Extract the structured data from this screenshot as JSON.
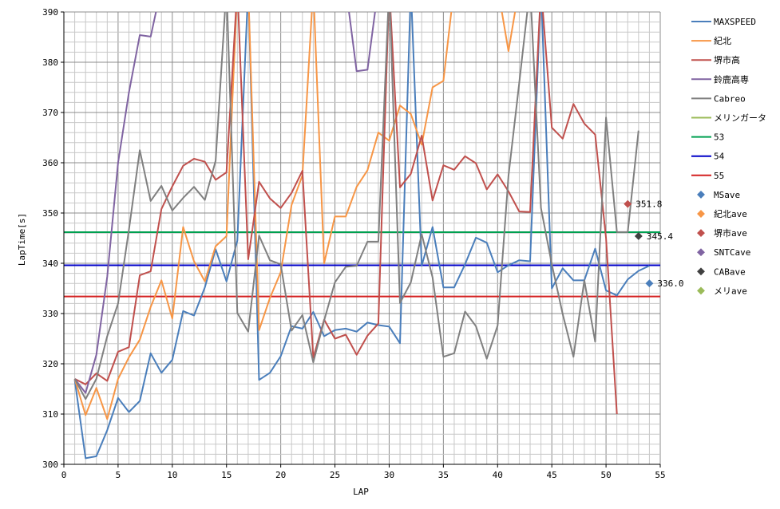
{
  "chart_data": {
    "type": "line",
    "xlabel": "LAP",
    "ylabel": "LapTime[s]",
    "xlim": [
      0,
      55
    ],
    "ylim": [
      300,
      390
    ],
    "xticks": [
      0,
      5,
      10,
      15,
      20,
      25,
      30,
      35,
      40,
      45,
      50,
      55
    ],
    "yticks": [
      300,
      310,
      320,
      330,
      340,
      350,
      360,
      370,
      380,
      390
    ],
    "grid": true,
    "legend_position": "right",
    "series": [
      {
        "name": "MAXSPEED",
        "color": "#4a7ebb",
        "x": [
          1,
          2,
          3,
          4,
          5,
          6,
          7,
          8,
          9,
          10,
          11,
          12,
          13,
          14,
          15,
          16,
          17,
          18,
          19,
          20,
          21,
          22,
          23,
          24,
          25,
          26,
          27,
          28,
          29,
          30,
          31,
          32,
          33,
          34,
          35,
          36,
          37,
          38,
          39,
          40,
          41,
          42,
          43,
          44,
          45,
          46,
          47,
          48,
          49,
          50,
          51,
          52,
          53,
          54
        ],
        "y": [
          316.8,
          301.2,
          301.6,
          306.8,
          313.2,
          310.4,
          312.6,
          322.1,
          318.2,
          320.8,
          330.5,
          329.6,
          335.2,
          342.8,
          336.4,
          344.5,
          395,
          316.8,
          318.2,
          321.5,
          327.5,
          327.0,
          330.3,
          325.5,
          326.7,
          327.0,
          326.4,
          328.2,
          327.7,
          327.4,
          324.1,
          395,
          339.5,
          347.2,
          335.2,
          335.2,
          339.8,
          345.1,
          344.1,
          338.2,
          339.6,
          340.6,
          340.4,
          395,
          335.0,
          339.0,
          336.6,
          336.6,
          342.9,
          334.6,
          333.6,
          336.8,
          338.5,
          339.5
        ]
      },
      {
        "name": "紀北",
        "color": "#f79646",
        "x": [
          1,
          2,
          3,
          4,
          5,
          6,
          7,
          8,
          9,
          10,
          11,
          12,
          13,
          14,
          15,
          16,
          17,
          18,
          19,
          20,
          21,
          22,
          23,
          24,
          25,
          26,
          27,
          28,
          29,
          30,
          31,
          32,
          33,
          34,
          35,
          36,
          37,
          38,
          39,
          40,
          41,
          42
        ],
        "y": [
          317.0,
          309.8,
          315.2,
          309.0,
          317.0,
          321.3,
          324.8,
          331.3,
          336.6,
          329.0,
          347.2,
          340.4,
          336.4,
          343.4,
          345.4,
          395,
          395,
          326.7,
          333.1,
          338.2,
          351.6,
          357.5,
          395,
          340.0,
          349.3,
          349.3,
          355.2,
          358.5,
          366.0,
          364.4,
          371.4,
          369.7,
          363.6,
          375.0,
          376.3,
          395,
          395,
          395,
          395,
          395,
          382.2,
          395
        ]
      },
      {
        "name": "堺市高",
        "color": "#c0504d",
        "x": [
          1,
          2,
          3,
          4,
          5,
          6,
          7,
          8,
          9,
          10,
          11,
          12,
          13,
          14,
          15,
          16,
          17,
          18,
          19,
          20,
          21,
          22,
          23,
          24,
          25,
          26,
          27,
          28,
          29,
          30,
          31,
          32,
          33,
          34,
          35,
          36,
          37,
          38,
          39,
          40,
          41,
          42,
          43,
          44,
          45,
          46,
          47,
          48,
          49,
          50,
          51
        ],
        "y": [
          317.0,
          315.9,
          318.1,
          316.6,
          322.4,
          323.3,
          337.6,
          338.4,
          350.8,
          355.3,
          359.4,
          360.8,
          360.2,
          356.6,
          358.1,
          395,
          340.8,
          356.2,
          352.9,
          351.0,
          354.0,
          358.4,
          321.2,
          328.8,
          325.0,
          325.8,
          321.8,
          325.6,
          328.0,
          395,
          355.1,
          357.8,
          365.4,
          352.5,
          359.5,
          358.6,
          361.3,
          359.9,
          354.7,
          357.7,
          354.3,
          350.3,
          350.2,
          395,
          367.0,
          364.8,
          371.7,
          367.8,
          365.6,
          345.0,
          310.0
        ]
      },
      {
        "name": "鈴鹿高専",
        "color": "#8064a2",
        "x": [
          1,
          2,
          3,
          4,
          5,
          6,
          7,
          8,
          9,
          10,
          11,
          12,
          13,
          14,
          15,
          16,
          17,
          18,
          19,
          20,
          21,
          22,
          23,
          24,
          25,
          26,
          27,
          28,
          29,
          30,
          31
        ],
        "y": [
          317.0,
          314.2,
          321.8,
          337.3,
          360.0,
          374.0,
          385.4,
          385.1,
          395,
          395,
          395,
          395,
          395,
          395,
          395,
          395,
          395,
          395,
          395,
          395,
          395,
          395,
          395,
          395,
          395,
          395,
          378.2,
          378.5,
          395,
          395,
          395
        ]
      },
      {
        "name": "Cabreo",
        "color": "#808080",
        "x": [
          1,
          2,
          3,
          4,
          5,
          6,
          7,
          8,
          9,
          10,
          11,
          12,
          13,
          14,
          15,
          16,
          17,
          18,
          19,
          20,
          21,
          22,
          23,
          24,
          25,
          26,
          27,
          28,
          29,
          30,
          31,
          32,
          33,
          34,
          35,
          36,
          37,
          38,
          39,
          40,
          41,
          42,
          43,
          44,
          45,
          46,
          47,
          48,
          49,
          50,
          51,
          52,
          53
        ],
        "y": [
          317.0,
          313.0,
          317.0,
          325.5,
          332.0,
          346.7,
          362.5,
          352.4,
          355.4,
          350.5,
          353.0,
          355.2,
          352.6,
          360.4,
          395,
          330.1,
          326.4,
          345.5,
          340.6,
          339.8,
          326.6,
          329.7,
          320.3,
          328.6,
          336.2,
          339.3,
          339.5,
          344.3,
          344.3,
          395,
          332.1,
          336.2,
          345.8,
          337.2,
          321.4,
          322.1,
          330.4,
          327.5,
          321.0,
          327.6,
          357.4,
          375.9,
          395,
          351.0,
          339.8,
          329.9,
          321.4,
          336.6,
          324.4,
          369.0,
          346.2,
          346.2,
          366.4
        ]
      },
      {
        "name": "メリンガータ",
        "color": "#9bbb59",
        "x": [],
        "y": []
      }
    ],
    "reference_lines": [
      {
        "name": "53",
        "value": 346.2,
        "color": "#00a050"
      },
      {
        "name": "54",
        "value": 339.6,
        "color": "#0000c8"
      },
      {
        "name": "55",
        "value": 333.4,
        "color": "#d42020"
      }
    ],
    "average_points": [
      {
        "name": "MSave",
        "x": 54,
        "y": 336.0,
        "label": "336.0",
        "color": "#4a7ebb"
      },
      {
        "name": "紀北ave",
        "x": null,
        "y": null,
        "label": "",
        "color": "#f79646"
      },
      {
        "name": "堺市ave",
        "x": 52,
        "y": 351.8,
        "label": "351.8",
        "color": "#c0504d"
      },
      {
        "name": "SNTCave",
        "x": null,
        "y": null,
        "label": "",
        "color": "#8064a2"
      },
      {
        "name": "CABave",
        "x": 53,
        "y": 345.4,
        "label": "345.4",
        "color": "#404040"
      },
      {
        "name": "メリave",
        "x": null,
        "y": null,
        "label": "",
        "color": "#9bbb59"
      }
    ]
  }
}
